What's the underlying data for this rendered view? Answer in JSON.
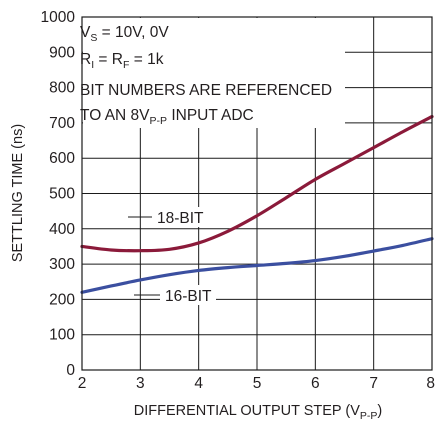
{
  "chart_data": {
    "type": "line",
    "title": "",
    "xlabel": {
      "main": "DIFFERENTIAL OUTPUT STEP (V",
      "sub": "P-P",
      "end": ")"
    },
    "ylabel": "SETTLING TIME (ns)",
    "xlim": [
      2,
      8
    ],
    "ylim": [
      0,
      1000
    ],
    "x_ticks": [
      "2",
      "3",
      "4",
      "5",
      "6",
      "7",
      "8"
    ],
    "y_ticks": [
      "0",
      "100",
      "200",
      "300",
      "400",
      "500",
      "600",
      "700",
      "800",
      "900",
      "1000"
    ],
    "grid": true,
    "series": [
      {
        "name": "18-BIT",
        "color": "#8b1a3a",
        "x": [
          2,
          2.5,
          3,
          3.5,
          4,
          4.5,
          5,
          5.5,
          6,
          6.5,
          7,
          7.5,
          8
        ],
        "y": [
          350,
          340,
          338,
          342,
          360,
          393,
          437,
          488,
          540,
          585,
          630,
          675,
          718
        ]
      },
      {
        "name": "16-BIT",
        "color": "#3b4fa0",
        "x": [
          2,
          2.5,
          3,
          3.5,
          4,
          4.5,
          5,
          5.5,
          6,
          6.5,
          7,
          7.5,
          8
        ],
        "y": [
          220,
          238,
          255,
          270,
          282,
          290,
          296,
          302,
          310,
          322,
          337,
          353,
          372
        ]
      }
    ],
    "annotations": {
      "conditions": [
        {
          "main": "V",
          "sub": "S",
          "rest": " = 10V, 0V"
        },
        {
          "main": "R",
          "sub": "I",
          "rest": " = R",
          "sub2": "F",
          "rest2": " = 1k"
        }
      ],
      "note_line1": "BIT NUMBERS ARE REFERENCED",
      "note_line2_pre": "TO AN 8V",
      "note_line2_sub": "P-P",
      "note_line2_post": " INPUT ADC"
    }
  }
}
